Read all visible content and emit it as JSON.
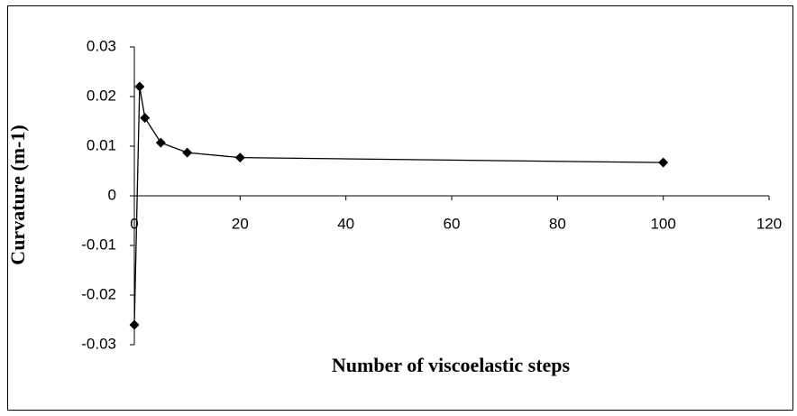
{
  "chart_data": {
    "type": "line",
    "x_label": "Number of viscoelastic steps",
    "y_label": "Curvature (m-1)",
    "x": [
      0,
      1,
      2,
      5,
      10,
      20,
      100
    ],
    "series": [
      {
        "color": "#000000",
        "marker": "diamond",
        "values": [
          -0.026,
          0.022,
          0.0157,
          0.0107,
          0.0087,
          0.0077,
          0.0067
        ]
      }
    ],
    "xlim": [
      0,
      120
    ],
    "xticks": [
      0,
      20,
      40,
      60,
      80,
      100,
      120
    ],
    "ylim": [
      -0.03,
      0.03
    ],
    "yticks": [
      -0.03,
      -0.02,
      -0.01,
      0,
      0.01,
      0.02,
      0.03
    ],
    "grid": false
  }
}
